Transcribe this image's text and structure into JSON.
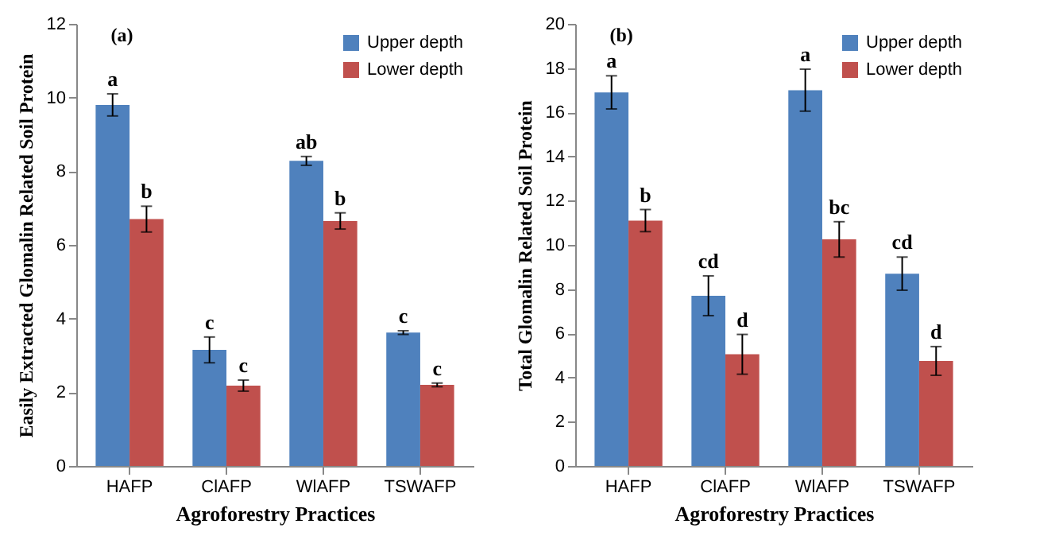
{
  "chart_data": [
    {
      "type": "bar",
      "title": "(a)",
      "xlabel": "Agroforestry Practices",
      "ylabel": "Easily Extracted Glomalin Related Soil Protein",
      "categories": [
        "HAFP",
        "ClAFP",
        "WlAFP",
        "TSWAFP"
      ],
      "ylim": [
        0,
        12
      ],
      "yticks": [
        0,
        2,
        4,
        6,
        8,
        10,
        12
      ],
      "legend": "top right",
      "grid": false,
      "series": [
        {
          "name": "Upper depth",
          "color": "#4f81bd",
          "values": [
            9.8,
            3.15,
            8.28,
            3.62
          ],
          "errors": [
            0.3,
            0.35,
            0.12,
            0.05
          ],
          "value_labels": [
            "a",
            "c",
            "ab",
            "c"
          ]
        },
        {
          "name": "Lower depth",
          "color": "#c0504d",
          "values": [
            6.7,
            2.18,
            6.65,
            2.2
          ],
          "errors": [
            0.35,
            0.15,
            0.22,
            0.05
          ],
          "value_labels": [
            "b",
            "c",
            "b",
            "c"
          ]
        }
      ]
    },
    {
      "type": "bar",
      "title": "(b)",
      "xlabel": "Agroforestry Practices",
      "ylabel": "Total Glomalin Related Soil Protein",
      "categories": [
        "HAFP",
        "ClAFP",
        "WlAFP",
        "TSWAFP"
      ],
      "ylim": [
        0,
        20
      ],
      "yticks": [
        0,
        2,
        4,
        6,
        8,
        10,
        12,
        14,
        16,
        18,
        20
      ],
      "legend": "top right",
      "grid": false,
      "series": [
        {
          "name": "Upper depth",
          "color": "#4f81bd",
          "values": [
            16.9,
            7.7,
            17.0,
            8.7
          ],
          "errors": [
            0.75,
            0.9,
            0.95,
            0.75
          ],
          "value_labels": [
            "a",
            "cd",
            "a",
            "cd"
          ]
        },
        {
          "name": "Lower depth",
          "color": "#c0504d",
          "values": [
            11.1,
            5.05,
            10.25,
            4.75
          ],
          "errors": [
            0.5,
            0.9,
            0.8,
            0.65
          ],
          "value_labels": [
            "b",
            "d",
            "bc",
            "d"
          ]
        }
      ]
    }
  ]
}
